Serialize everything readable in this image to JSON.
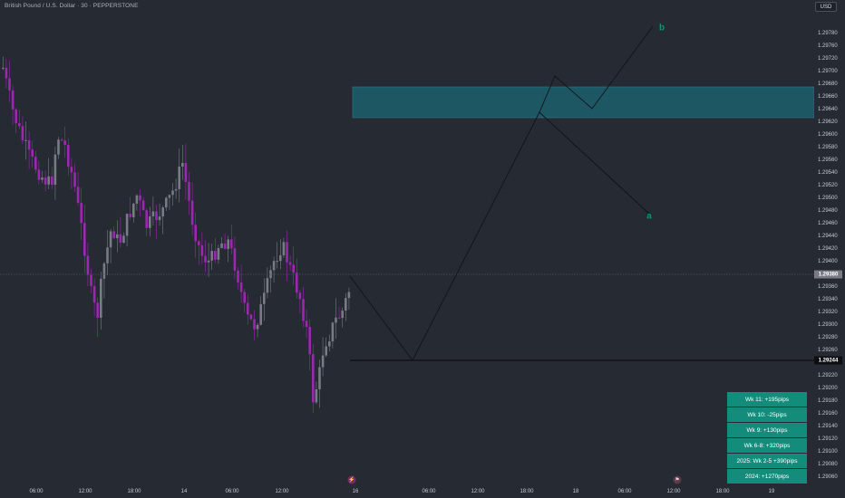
{
  "header": {
    "symbol_title": "British Pound / U.S. Dollar · 30 · PEPPERSTONE",
    "currency": "USD"
  },
  "price_axis": {
    "labels": [
      "1.29780",
      "1.29760",
      "1.29720",
      "1.29700",
      "1.29680",
      "1.29660",
      "1.29640",
      "1.29620",
      "1.29600",
      "1.29580",
      "1.29560",
      "1.29540",
      "1.29520",
      "1.29500",
      "1.29480",
      "1.29460",
      "1.29440",
      "1.29420",
      "1.29400",
      "1.29360",
      "1.29340",
      "1.29320",
      "1.29300",
      "1.29280",
      "1.29260",
      "1.29220",
      "1.29200",
      "1.29180",
      "1.29160",
      "1.29140",
      "1.29120",
      "1.29100",
      "1.29080",
      "1.29060"
    ],
    "current_price": "1.29380",
    "level_price": "1.29244"
  },
  "time_axis": {
    "labels": [
      "06:00",
      "12:00",
      "18:00",
      "14",
      "06:00",
      "12:00",
      "16",
      "06:00",
      "12:00",
      "18:00",
      "18",
      "06:00",
      "12:00",
      "18:00",
      "19"
    ]
  },
  "drawings": {
    "wave_a": "a",
    "wave_b": "b"
  },
  "stats_panel": {
    "rows": [
      "Wk 11: +195pips",
      "Wk 10: -25pips",
      "Wk 9: +130pips",
      "Wk 6-8: +320pips",
      "2025: Wk 2-5  +390pips",
      "2024: +1270pips"
    ]
  },
  "colors": {
    "background": "#262a33",
    "bull_candle": "#787b86",
    "bear_candle": "#9c27b0",
    "zone_fill": "#1d5763",
    "panel_green": "#148c7c"
  },
  "icons": {
    "event_1": "lightning-bolt-icon",
    "event_2": "flag-icon"
  }
}
